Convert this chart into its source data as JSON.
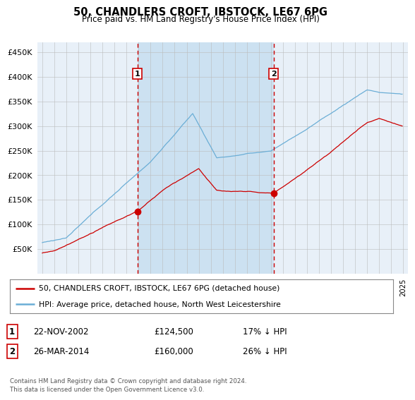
{
  "title": "50, CHANDLERS CROFT, IBSTOCK, LE67 6PG",
  "subtitle": "Price paid vs. HM Land Registry's House Price Index (HPI)",
  "background_color": "#ffffff",
  "plot_bg_color": "#e8f0f8",
  "shade_color": "#c8dff0",
  "legend_line1": "50, CHANDLERS CROFT, IBSTOCK, LE67 6PG (detached house)",
  "legend_line2": "HPI: Average price, detached house, North West Leicestershire",
  "footnote": "Contains HM Land Registry data © Crown copyright and database right 2024.\nThis data is licensed under the Open Government Licence v3.0.",
  "transaction1_date": "22-NOV-2002",
  "transaction1_price": "£124,500",
  "transaction1_hpi": "17% ↓ HPI",
  "transaction2_date": "26-MAR-2014",
  "transaction2_price": "£160,000",
  "transaction2_hpi": "26% ↓ HPI",
  "sale1_year": 2002.9,
  "sale1_price": 124500,
  "sale2_year": 2014.23,
  "sale2_price": 160000,
  "ylim": [
    0,
    470000
  ],
  "yticks": [
    50000,
    100000,
    150000,
    200000,
    250000,
    300000,
    350000,
    400000,
    450000
  ],
  "hpi_color": "#6baed6",
  "sale_color": "#cc0000",
  "vline_color": "#cc0000",
  "grid_color": "#bbbbbb"
}
